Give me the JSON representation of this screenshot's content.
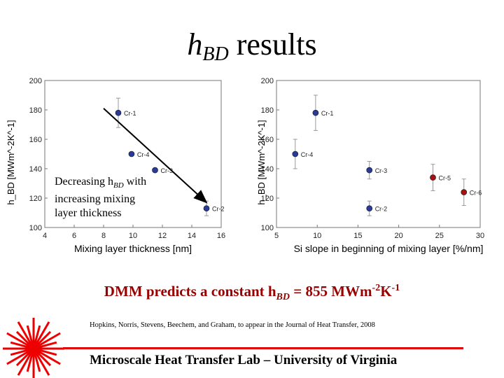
{
  "slide": {
    "title_main": "h",
    "title_sub": "BD",
    "title_rest": " results",
    "annotation_line1_pre": "Decreasing h",
    "annotation_line1_sub": "BD",
    "annotation_line1_post": " with",
    "annotation_line2": "increasing mixing",
    "annotation_line3": "layer thickness",
    "dmm_pre": "DMM predicts a constant h",
    "dmm_sub": "BD",
    "dmm_mid": " = 855 MWm",
    "dmm_exp1": "-2",
    "dmm_k": "K",
    "dmm_exp2": "-1",
    "reference": "Hopkins, Norris, Stevens, Beechem, and Graham, to appear in the Journal of Heat Transfer, 2008",
    "lab_name": "Microscale Heat Transfer Lab – University of Virginia",
    "colors": {
      "accent_red": "#990000",
      "rule_red": "#e00000",
      "logo_red": "#ee0000"
    }
  },
  "chart_data": [
    {
      "type": "scatter",
      "xlabel": "Mixing layer thickness [nm]",
      "ylabel": "h_BD [MWm^-2K^-1]",
      "xlim": [
        4,
        16
      ],
      "ylim": [
        100,
        200
      ],
      "xticks": [
        4,
        6,
        8,
        10,
        12,
        14,
        16
      ],
      "yticks": [
        100,
        120,
        140,
        160,
        180,
        200
      ],
      "points": [
        {
          "label": "Cr-1",
          "x": 9.0,
          "y": 178,
          "err": 10
        },
        {
          "label": "Cr-4",
          "x": 9.9,
          "y": 150,
          "err": 0
        },
        {
          "label": "Cr-3",
          "x": 11.5,
          "y": 139,
          "err": 0
        },
        {
          "label": "Cr-2",
          "x": 15.0,
          "y": 113,
          "err": 5
        }
      ],
      "trend_arrow": {
        "from": [
          8.0,
          181
        ],
        "to": [
          15.0,
          117
        ]
      }
    },
    {
      "type": "scatter",
      "xlabel": "Si slope in beginning of mixing layer [%/nm]",
      "ylabel": "h_BD [MWm^-2K^-1]",
      "xlim": [
        5,
        30
      ],
      "ylim": [
        100,
        200
      ],
      "xticks": [
        5,
        10,
        15,
        20,
        25,
        30
      ],
      "yticks": [
        100,
        120,
        140,
        160,
        180,
        200
      ],
      "points": [
        {
          "label": "Cr-1",
          "x": 9.8,
          "y": 178,
          "err": 12
        },
        {
          "label": "Cr-4",
          "x": 7.3,
          "y": 150,
          "err": 10
        },
        {
          "label": "Cr-3",
          "x": 16.4,
          "y": 139,
          "err": 6
        },
        {
          "label": "Cr-2",
          "x": 16.4,
          "y": 113,
          "err": 5
        },
        {
          "label": "Cr-5",
          "x": 24.2,
          "y": 134,
          "err": 9,
          "color": "#aa1111"
        },
        {
          "label": "Cr-6",
          "x": 28.0,
          "y": 124,
          "err": 9,
          "color": "#aa1111"
        }
      ]
    }
  ]
}
